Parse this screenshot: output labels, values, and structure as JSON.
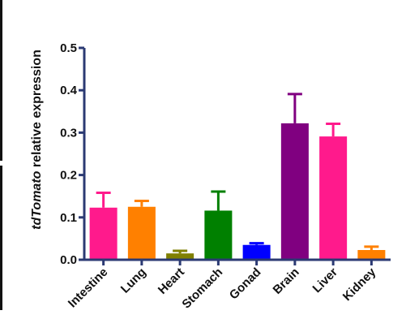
{
  "chart_data": {
    "type": "bar",
    "categories": [
      "Intestine",
      "Lung",
      "Heart",
      "Stomach",
      "Gonad",
      "Brain",
      "Liver",
      "Kidney"
    ],
    "values": [
      0.123,
      0.125,
      0.015,
      0.116,
      0.035,
      0.322,
      0.291,
      0.023
    ],
    "errors": [
      0.035,
      0.014,
      0.006,
      0.045,
      0.004,
      0.069,
      0.03,
      0.008
    ],
    "colors": [
      "#ff1a8c",
      "#ff8000",
      "#808000",
      "#008000",
      "#0000ff",
      "#800080",
      "#ff1a8c",
      "#ff8000"
    ],
    "ylabel_italic": "tdTomato",
    "ylabel_rest": " relative expression",
    "xlabel": "",
    "ylim": [
      0,
      0.5
    ],
    "yticks": [
      "0.0",
      "0.1",
      "0.2",
      "0.3",
      "0.4",
      "0.5"
    ],
    "ytick_values": [
      0,
      0.1,
      0.2,
      0.3,
      0.4,
      0.5
    ],
    "axis_color": "#2b3a73",
    "grid": false,
    "legend": "none"
  }
}
